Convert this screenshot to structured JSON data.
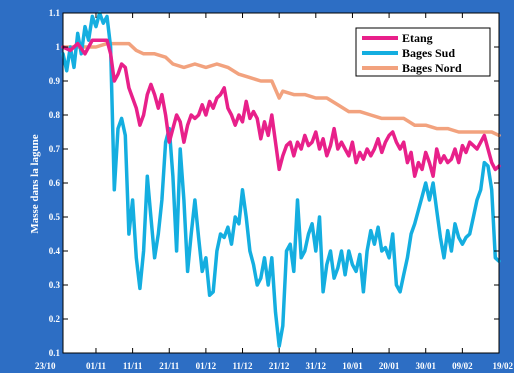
{
  "colors": {
    "background": "#2d6ec4",
    "plot_background": "#ffffff",
    "axis": "#000000",
    "tick_text": "#ffffff"
  },
  "chart_data": {
    "type": "line",
    "title": "",
    "xlabel": "",
    "ylabel": "Masse dans la lagune",
    "xlim": [
      0,
      119
    ],
    "ylim": [
      0.1,
      1.1
    ],
    "grid": false,
    "legend_position": "top-right",
    "x_tick_labels": [
      {
        "x": 0,
        "label": "23/10"
      },
      {
        "x": 9,
        "label": "01/11"
      },
      {
        "x": 19,
        "label": "11/11"
      },
      {
        "x": 29,
        "label": "21/11"
      },
      {
        "x": 39,
        "label": "01/12"
      },
      {
        "x": 49,
        "label": "11/12"
      },
      {
        "x": 59,
        "label": "21/12"
      },
      {
        "x": 69,
        "label": "31/12"
      },
      {
        "x": 79,
        "label": "10/01"
      },
      {
        "x": 89,
        "label": "20/01"
      },
      {
        "x": 99,
        "label": "30/01"
      },
      {
        "x": 109,
        "label": "09/02"
      },
      {
        "x": 119,
        "label": "19/02"
      }
    ],
    "y_ticks": [
      0.1,
      0.2,
      0.3,
      0.4,
      0.5,
      0.6,
      0.7,
      0.8,
      0.9,
      1,
      1.1
    ],
    "series": [
      {
        "name": "Etang",
        "color": "#e8208a",
        "points": [
          [
            0,
            1.0
          ],
          [
            2,
            0.99
          ],
          [
            4,
            1.01
          ],
          [
            6,
            0.98
          ],
          [
            8,
            1.02
          ],
          [
            10,
            1.02
          ],
          [
            12,
            1.02
          ],
          [
            13,
            0.98
          ],
          [
            14,
            0.9
          ],
          [
            15,
            0.92
          ],
          [
            16,
            0.95
          ],
          [
            17,
            0.94
          ],
          [
            18,
            0.88
          ],
          [
            19,
            0.85
          ],
          [
            20,
            0.82
          ],
          [
            21,
            0.77
          ],
          [
            22,
            0.8
          ],
          [
            23,
            0.86
          ],
          [
            24,
            0.89
          ],
          [
            25,
            0.86
          ],
          [
            26,
            0.82
          ],
          [
            27,
            0.86
          ],
          [
            28,
            0.8
          ],
          [
            29,
            0.72
          ],
          [
            30,
            0.76
          ],
          [
            31,
            0.8
          ],
          [
            32,
            0.78
          ],
          [
            33,
            0.72
          ],
          [
            34,
            0.77
          ],
          [
            35,
            0.8
          ],
          [
            36,
            0.79
          ],
          [
            37,
            0.8
          ],
          [
            38,
            0.83
          ],
          [
            39,
            0.8
          ],
          [
            40,
            0.84
          ],
          [
            41,
            0.82
          ],
          [
            42,
            0.85
          ],
          [
            43,
            0.86
          ],
          [
            44,
            0.88
          ],
          [
            45,
            0.82
          ],
          [
            46,
            0.8
          ],
          [
            47,
            0.77
          ],
          [
            48,
            0.8
          ],
          [
            49,
            0.78
          ],
          [
            50,
            0.84
          ],
          [
            51,
            0.79
          ],
          [
            52,
            0.81
          ],
          [
            53,
            0.79
          ],
          [
            54,
            0.73
          ],
          [
            55,
            0.78
          ],
          [
            56,
            0.74
          ],
          [
            57,
            0.8
          ],
          [
            58,
            0.72
          ],
          [
            59,
            0.64
          ],
          [
            60,
            0.68
          ],
          [
            61,
            0.71
          ],
          [
            62,
            0.72
          ],
          [
            63,
            0.68
          ],
          [
            64,
            0.72
          ],
          [
            65,
            0.7
          ],
          [
            66,
            0.74
          ],
          [
            67,
            0.71
          ],
          [
            68,
            0.72
          ],
          [
            69,
            0.75
          ],
          [
            70,
            0.7
          ],
          [
            71,
            0.73
          ],
          [
            72,
            0.68
          ],
          [
            73,
            0.71
          ],
          [
            74,
            0.76
          ],
          [
            75,
            0.7
          ],
          [
            76,
            0.72
          ],
          [
            77,
            0.7
          ],
          [
            78,
            0.68
          ],
          [
            79,
            0.72
          ],
          [
            80,
            0.66
          ],
          [
            81,
            0.69
          ],
          [
            82,
            0.67
          ],
          [
            83,
            0.7
          ],
          [
            84,
            0.68
          ],
          [
            85,
            0.7
          ],
          [
            86,
            0.73
          ],
          [
            87,
            0.69
          ],
          [
            88,
            0.72
          ],
          [
            89,
            0.74
          ],
          [
            90,
            0.75
          ],
          [
            91,
            0.72
          ],
          [
            92,
            0.7
          ],
          [
            93,
            0.72
          ],
          [
            94,
            0.66
          ],
          [
            95,
            0.69
          ],
          [
            96,
            0.62
          ],
          [
            97,
            0.66
          ],
          [
            98,
            0.64
          ],
          [
            99,
            0.69
          ],
          [
            100,
            0.66
          ],
          [
            101,
            0.62
          ],
          [
            102,
            0.7
          ],
          [
            103,
            0.66
          ],
          [
            104,
            0.68
          ],
          [
            105,
            0.66
          ],
          [
            106,
            0.67
          ],
          [
            107,
            0.7
          ],
          [
            108,
            0.66
          ],
          [
            109,
            0.71
          ],
          [
            110,
            0.69
          ],
          [
            111,
            0.72
          ],
          [
            112,
            0.71
          ],
          [
            113,
            0.7
          ],
          [
            114,
            0.72
          ],
          [
            115,
            0.74
          ],
          [
            116,
            0.7
          ],
          [
            117,
            0.66
          ],
          [
            118,
            0.64
          ],
          [
            119,
            0.65
          ]
        ]
      },
      {
        "name": "Bages Sud",
        "color": "#14aee0",
        "points": [
          [
            0,
            0.98
          ],
          [
            1,
            0.93
          ],
          [
            2,
            1.0
          ],
          [
            3,
            0.94
          ],
          [
            4,
            1.04
          ],
          [
            5,
            0.98
          ],
          [
            6,
            1.06
          ],
          [
            7,
            1.02
          ],
          [
            8,
            1.09
          ],
          [
            9,
            1.06
          ],
          [
            10,
            1.1
          ],
          [
            11,
            1.07
          ],
          [
            12,
            1.09
          ],
          [
            13,
            1.0
          ],
          [
            14,
            0.58
          ],
          [
            15,
            0.76
          ],
          [
            16,
            0.79
          ],
          [
            17,
            0.74
          ],
          [
            18,
            0.45
          ],
          [
            19,
            0.55
          ],
          [
            20,
            0.38
          ],
          [
            21,
            0.29
          ],
          [
            22,
            0.4
          ],
          [
            23,
            0.62
          ],
          [
            24,
            0.5
          ],
          [
            25,
            0.38
          ],
          [
            26,
            0.45
          ],
          [
            27,
            0.55
          ],
          [
            28,
            0.72
          ],
          [
            29,
            0.76
          ],
          [
            30,
            0.62
          ],
          [
            31,
            0.4
          ],
          [
            32,
            0.7
          ],
          [
            33,
            0.55
          ],
          [
            34,
            0.34
          ],
          [
            35,
            0.45
          ],
          [
            36,
            0.55
          ],
          [
            37,
            0.44
          ],
          [
            38,
            0.34
          ],
          [
            39,
            0.38
          ],
          [
            40,
            0.27
          ],
          [
            41,
            0.28
          ],
          [
            42,
            0.4
          ],
          [
            43,
            0.45
          ],
          [
            44,
            0.44
          ],
          [
            45,
            0.47
          ],
          [
            46,
            0.42
          ],
          [
            47,
            0.5
          ],
          [
            48,
            0.48
          ],
          [
            49,
            0.58
          ],
          [
            50,
            0.5
          ],
          [
            51,
            0.4
          ],
          [
            52,
            0.36
          ],
          [
            53,
            0.3
          ],
          [
            54,
            0.32
          ],
          [
            55,
            0.38
          ],
          [
            56,
            0.3
          ],
          [
            57,
            0.38
          ],
          [
            58,
            0.22
          ],
          [
            59,
            0.12
          ],
          [
            60,
            0.18
          ],
          [
            61,
            0.4
          ],
          [
            62,
            0.42
          ],
          [
            63,
            0.34
          ],
          [
            64,
            0.55
          ],
          [
            65,
            0.38
          ],
          [
            66,
            0.4
          ],
          [
            67,
            0.45
          ],
          [
            68,
            0.48
          ],
          [
            69,
            0.4
          ],
          [
            70,
            0.5
          ],
          [
            71,
            0.28
          ],
          [
            72,
            0.36
          ],
          [
            73,
            0.4
          ],
          [
            74,
            0.32
          ],
          [
            75,
            0.35
          ],
          [
            76,
            0.4
          ],
          [
            77,
            0.33
          ],
          [
            78,
            0.4
          ],
          [
            79,
            0.36
          ],
          [
            80,
            0.34
          ],
          [
            81,
            0.39
          ],
          [
            82,
            0.28
          ],
          [
            83,
            0.4
          ],
          [
            84,
            0.46
          ],
          [
            85,
            0.42
          ],
          [
            86,
            0.47
          ],
          [
            87,
            0.4
          ],
          [
            88,
            0.41
          ],
          [
            89,
            0.38
          ],
          [
            90,
            0.45
          ],
          [
            91,
            0.3
          ],
          [
            92,
            0.28
          ],
          [
            93,
            0.33
          ],
          [
            94,
            0.38
          ],
          [
            95,
            0.45
          ],
          [
            96,
            0.48
          ],
          [
            97,
            0.52
          ],
          [
            98,
            0.56
          ],
          [
            99,
            0.6
          ],
          [
            100,
            0.55
          ],
          [
            101,
            0.6
          ],
          [
            102,
            0.52
          ],
          [
            103,
            0.44
          ],
          [
            104,
            0.38
          ],
          [
            105,
            0.46
          ],
          [
            106,
            0.4
          ],
          [
            107,
            0.48
          ],
          [
            108,
            0.44
          ],
          [
            109,
            0.42
          ],
          [
            110,
            0.44
          ],
          [
            111,
            0.45
          ],
          [
            112,
            0.5
          ],
          [
            113,
            0.55
          ],
          [
            114,
            0.58
          ],
          [
            115,
            0.66
          ],
          [
            116,
            0.65
          ],
          [
            117,
            0.58
          ],
          [
            118,
            0.38
          ],
          [
            119,
            0.37
          ]
        ]
      },
      {
        "name": "Bages Nord",
        "color": "#f2a27e",
        "points": [
          [
            0,
            1.0
          ],
          [
            3,
            1.0
          ],
          [
            6,
            1.0
          ],
          [
            9,
            1.0
          ],
          [
            12,
            1.01
          ],
          [
            15,
            1.01
          ],
          [
            18,
            1.01
          ],
          [
            20,
            0.99
          ],
          [
            22,
            0.98
          ],
          [
            25,
            0.98
          ],
          [
            28,
            0.97
          ],
          [
            30,
            0.95
          ],
          [
            33,
            0.94
          ],
          [
            36,
            0.95
          ],
          [
            39,
            0.94
          ],
          [
            42,
            0.95
          ],
          [
            45,
            0.94
          ],
          [
            48,
            0.92
          ],
          [
            51,
            0.91
          ],
          [
            54,
            0.9
          ],
          [
            57,
            0.9
          ],
          [
            59,
            0.85
          ],
          [
            60,
            0.87
          ],
          [
            63,
            0.86
          ],
          [
            66,
            0.86
          ],
          [
            69,
            0.85
          ],
          [
            72,
            0.85
          ],
          [
            75,
            0.83
          ],
          [
            78,
            0.81
          ],
          [
            81,
            0.81
          ],
          [
            84,
            0.8
          ],
          [
            87,
            0.79
          ],
          [
            90,
            0.79
          ],
          [
            93,
            0.79
          ],
          [
            96,
            0.77
          ],
          [
            99,
            0.77
          ],
          [
            102,
            0.76
          ],
          [
            105,
            0.76
          ],
          [
            108,
            0.75
          ],
          [
            111,
            0.75
          ],
          [
            114,
            0.75
          ],
          [
            117,
            0.75
          ],
          [
            119,
            0.74
          ]
        ]
      }
    ]
  }
}
